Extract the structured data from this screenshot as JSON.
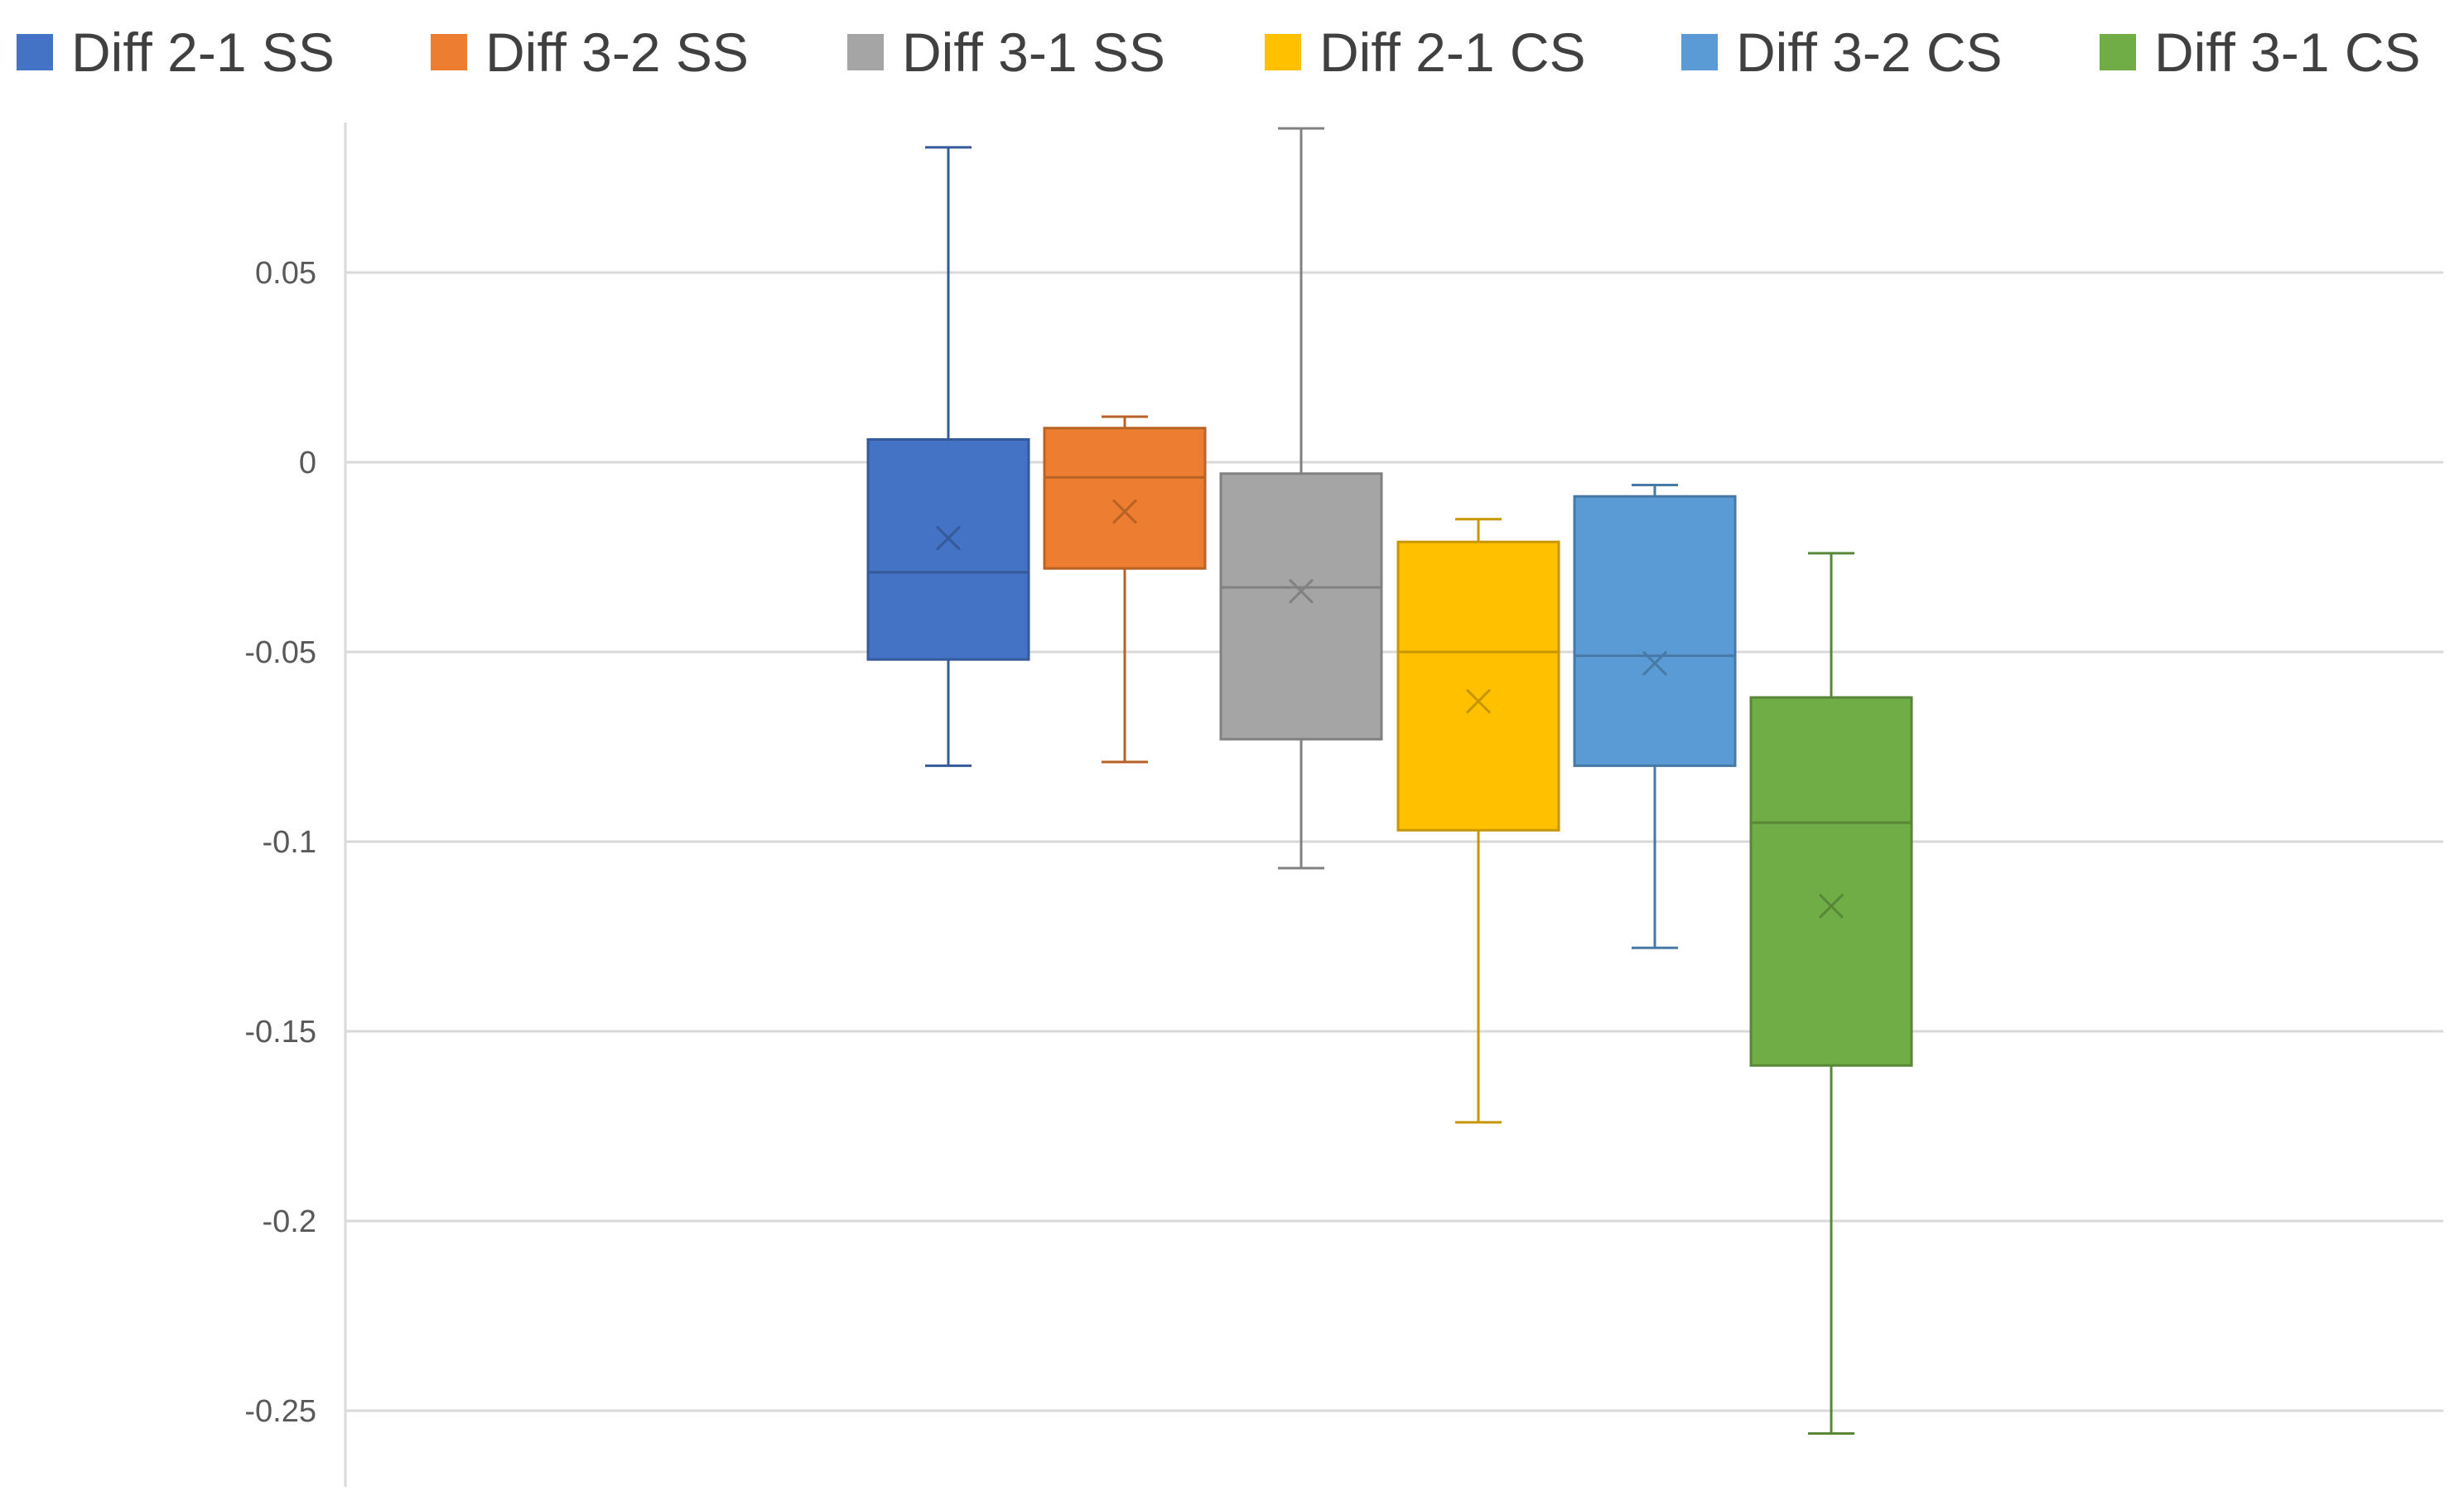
{
  "chart_data": {
    "type": "box",
    "legend_position": "top",
    "grid": true,
    "ylim": [
      -0.27,
      0.09
    ],
    "yticks": [
      0.05,
      0,
      -0.05,
      -0.1,
      -0.15,
      -0.2,
      -0.25
    ],
    "ytick_labels": [
      "0.05",
      "0",
      "-0.05",
      "-0.1",
      "-0.15",
      "-0.2",
      "-0.25"
    ],
    "series": [
      {
        "name": "Diff 2-1 SS",
        "color": "#4472C4",
        "min": -0.08,
        "q1": -0.052,
        "median": -0.029,
        "q3": 0.006,
        "max": 0.083,
        "mean": -0.02
      },
      {
        "name": "Diff 3-2 SS",
        "color": "#ED7D31",
        "min": -0.079,
        "q1": -0.028,
        "median": -0.004,
        "q3": 0.009,
        "max": 0.012,
        "mean": -0.013
      },
      {
        "name": "Diff 3-1 SS",
        "color": "#A5A5A5",
        "min": -0.107,
        "q1": -0.073,
        "median": -0.033,
        "q3": -0.003,
        "max": 0.088,
        "mean": -0.034
      },
      {
        "name": "Diff 2-1 CS",
        "color": "#FFC000",
        "min": -0.174,
        "q1": -0.097,
        "median": -0.05,
        "q3": -0.021,
        "max": -0.015,
        "mean": -0.063
      },
      {
        "name": "Diff 3-2 CS",
        "color": "#5B9BD5",
        "min": -0.128,
        "q1": -0.08,
        "median": -0.051,
        "q3": -0.009,
        "max": -0.006,
        "mean": -0.053
      },
      {
        "name": "Diff 3-1 CS",
        "color": "#70AD47",
        "min": -0.256,
        "q1": -0.159,
        "median": -0.095,
        "q3": -0.062,
        "max": -0.024,
        "mean": -0.117
      }
    ]
  }
}
